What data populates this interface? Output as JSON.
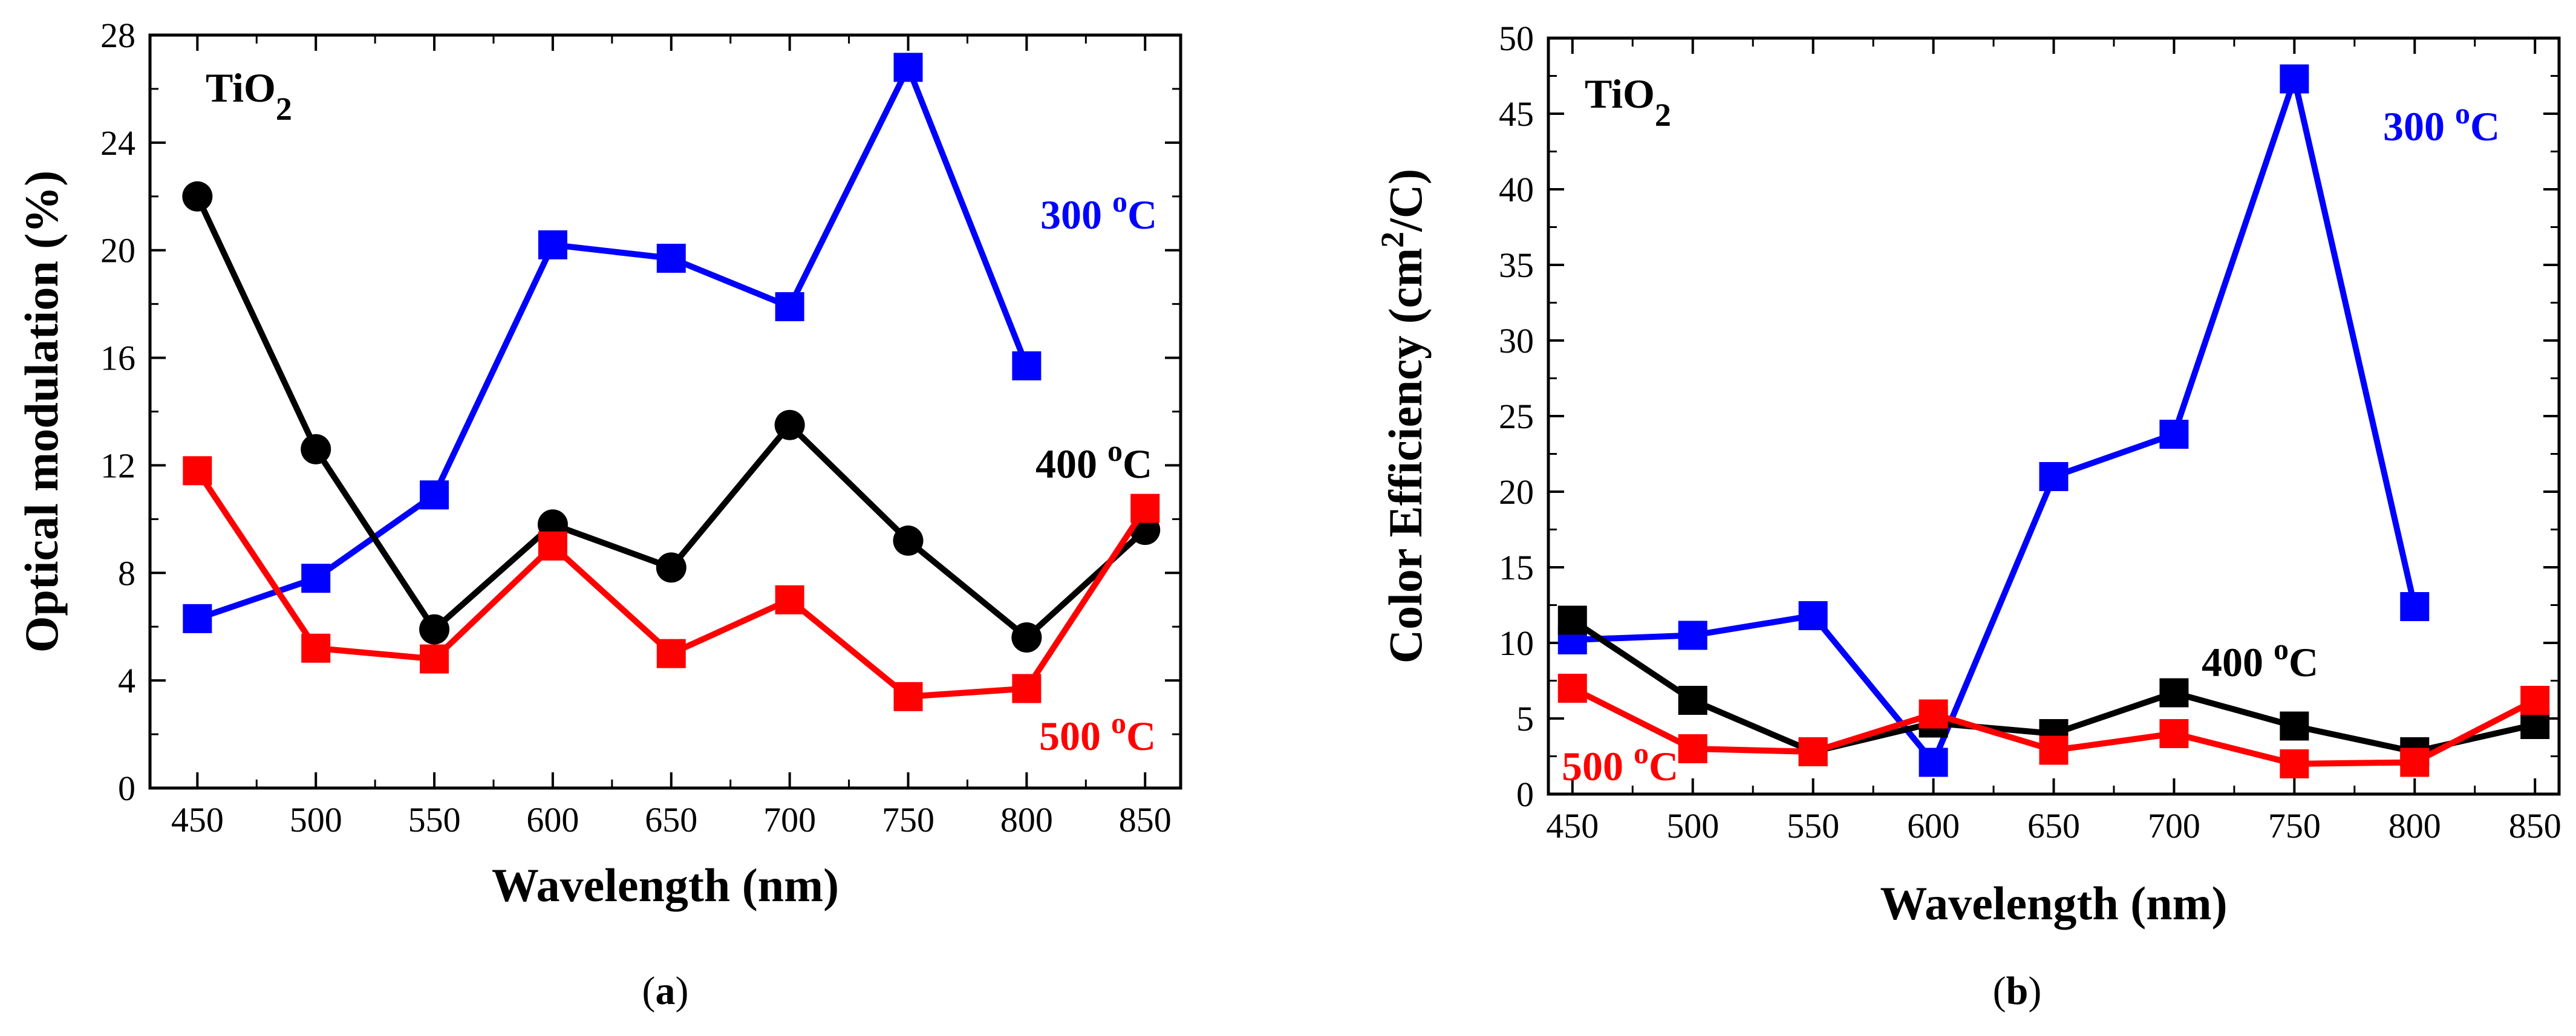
{
  "chart_data": [
    {
      "type": "line",
      "panel_label": "(a)",
      "annotation": "TiO2",
      "xlabel": "Wavelength (nm)",
      "ylabel": "Optical modulation (%)",
      "xlim": [
        430,
        865
      ],
      "ylim": [
        0,
        28
      ],
      "xticks": [
        450,
        500,
        550,
        600,
        650,
        700,
        750,
        800,
        850
      ],
      "yticks": [
        0,
        4,
        8,
        12,
        16,
        20,
        24,
        28
      ],
      "grid": false,
      "series": [
        {
          "name": "300 oC",
          "color": "#0000FF",
          "marker": "square",
          "x": [
            450,
            500,
            550,
            600,
            650,
            700,
            750,
            800
          ],
          "y": [
            6.3,
            7.8,
            10.9,
            20.2,
            19.7,
            17.9,
            26.8,
            15.7
          ]
        },
        {
          "name": "400 oC",
          "color": "#000000",
          "marker": "circle",
          "x": [
            450,
            500,
            550,
            600,
            650,
            700,
            750,
            800,
            850
          ],
          "y": [
            22.0,
            12.6,
            5.9,
            9.8,
            8.2,
            13.5,
            9.2,
            5.6,
            9.6
          ]
        },
        {
          "name": "500 oC",
          "color": "#FF0000",
          "marker": "square",
          "x": [
            450,
            500,
            550,
            600,
            650,
            700,
            750,
            800,
            850
          ],
          "y": [
            11.8,
            5.2,
            4.8,
            9.0,
            5.0,
            7.0,
            3.4,
            3.7,
            10.4
          ]
        }
      ],
      "labels": [
        {
          "series": "300 oC",
          "text": "300 ",
          "sup": "o",
          "unit": "C"
        },
        {
          "series": "400 oC",
          "text": "400 ",
          "sup": "o",
          "unit": "C"
        },
        {
          "series": "500 oC",
          "text": "500 ",
          "sup": "o",
          "unit": "C"
        }
      ]
    },
    {
      "type": "line",
      "panel_label": "(b)",
      "annotation": "TiO2",
      "xlabel": "Wavelength (nm)",
      "ylabel": "Color Efficiency (cm2/C)",
      "xlim": [
        440,
        860
      ],
      "ylim": [
        0,
        50
      ],
      "xticks": [
        450,
        500,
        550,
        600,
        650,
        700,
        750,
        800,
        850
      ],
      "yticks": [
        0,
        5,
        10,
        15,
        20,
        25,
        30,
        35,
        40,
        45,
        50
      ],
      "grid": false,
      "series": [
        {
          "name": "300 oC",
          "color": "#0000FF",
          "marker": "square",
          "x": [
            450,
            500,
            550,
            600,
            650,
            700,
            750,
            800
          ],
          "y": [
            10.2,
            10.5,
            11.8,
            2.1,
            21.0,
            23.8,
            47.3,
            12.4
          ]
        },
        {
          "name": "400 oC",
          "color": "#000000",
          "marker": "square",
          "x": [
            450,
            500,
            550,
            600,
            650,
            700,
            750,
            800,
            850
          ],
          "y": [
            11.5,
            6.2,
            2.8,
            4.7,
            4.0,
            6.7,
            4.5,
            2.8,
            4.6
          ]
        },
        {
          "name": "500 oC",
          "color": "#FF0000",
          "marker": "square",
          "x": [
            450,
            500,
            550,
            600,
            650,
            700,
            750,
            800,
            850
          ],
          "y": [
            7.0,
            3.0,
            2.8,
            5.3,
            2.9,
            4.0,
            2.0,
            2.1,
            6.2
          ]
        }
      ],
      "labels": [
        {
          "series": "300 oC",
          "text": "300 ",
          "sup": "o",
          "unit": "C"
        },
        {
          "series": "400 oC",
          "text": "400 ",
          "sup": "o",
          "unit": "C"
        },
        {
          "series": "500 oC",
          "text": "500 ",
          "sup": "o",
          "unit": "C"
        }
      ]
    }
  ]
}
